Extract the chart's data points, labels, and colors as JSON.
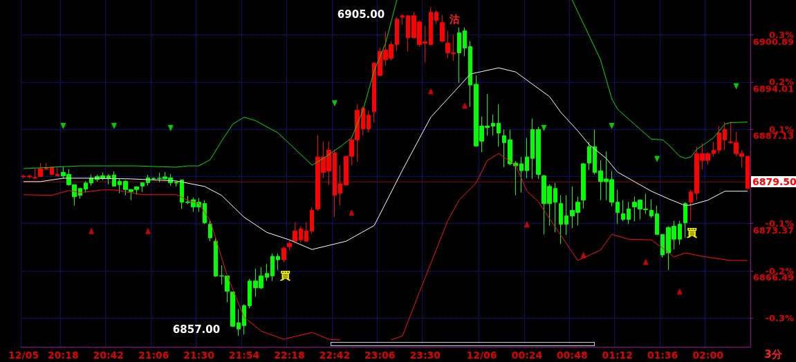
{
  "chart_data": {
    "type": "candlestick",
    "categories": [
      "12/05",
      null,
      null,
      null,
      null,
      null,
      null,
      "20:18",
      null,
      null,
      null,
      null,
      null,
      null,
      null,
      "20:42",
      null,
      null,
      null,
      null,
      null,
      null,
      null,
      "21:06",
      null,
      null,
      null,
      null,
      null,
      null,
      null,
      "21:30",
      null,
      null,
      null,
      null,
      null,
      null,
      null,
      "21:54",
      null,
      null,
      null,
      null,
      null,
      null,
      null,
      "22:18",
      null,
      null,
      null,
      null,
      null,
      null,
      null,
      "22:42",
      null,
      null,
      null,
      null,
      null,
      null,
      null,
      "23:06",
      null,
      null,
      null,
      null,
      null,
      null,
      null,
      "23:30",
      null,
      null,
      null,
      null,
      null,
      null,
      null,
      null,
      null,
      "12/06",
      null,
      null,
      null,
      null,
      null,
      null,
      null,
      "00:24",
      null,
      null,
      null,
      null,
      null,
      null,
      null,
      "00:48",
      null,
      null,
      null,
      null,
      null,
      null,
      null,
      "01:12",
      null,
      null,
      null,
      null,
      null,
      null,
      null,
      "01:36",
      null,
      null,
      null,
      null,
      null,
      null,
      null,
      "02:00",
      null,
      null,
      null,
      null,
      null,
      null,
      null
    ],
    "ohlc": [
      [
        6880.2,
        6880.5,
        6880.0,
        6880.3
      ],
      [
        6880.2,
        6880.5,
        6880.0,
        6880.3
      ],
      [
        6880.0,
        6881.4,
        6879.9,
        6880.1
      ],
      [
        6880.25,
        6882.2,
        6880.25,
        6881.4
      ],
      [
        6881.3,
        6882.2,
        6881.3,
        6881.5
      ],
      [
        6880.55,
        6881.6,
        6880.5,
        6881.6
      ],
      [
        6880.35,
        6881.6,
        6880.3,
        6880.55
      ],
      [
        6880.85,
        6881.6,
        6879.9,
        6880.35
      ],
      [
        6880.55,
        6881.3,
        6878.9,
        6879.05
      ],
      [
        6879.05,
        6879.1,
        6876.0,
        6877.3
      ],
      [
        6878.5,
        6878.6,
        6877.0,
        6877.5
      ],
      [
        6879.3,
        6879.6,
        6877.9,
        6878.4
      ],
      [
        6880.0,
        6880.55,
        6878.9,
        6879.3
      ],
      [
        6880.25,
        6880.5,
        6879.5,
        6879.8
      ],
      [
        6880.35,
        6880.85,
        6879.7,
        6879.95
      ],
      [
        6880.35,
        6880.6,
        6879.1,
        6879.95
      ],
      [
        6880.45,
        6881.0,
        6878.85,
        6878.85
      ],
      [
        6879.55,
        6880.0,
        6877.8,
        6879.05
      ],
      [
        6879.55,
        6879.7,
        6877.5,
        6878.35
      ],
      [
        6878.35,
        6878.4,
        6876.8,
        6878.05
      ],
      [
        6878.75,
        6878.75,
        6877.6,
        6878.35
      ],
      [
        6879.35,
        6879.35,
        6878.0,
        6878.85
      ],
      [
        6880.05,
        6880.5,
        6878.9,
        6879.35
      ],
      [
        6880.0,
        6880.0,
        6879.7,
        6879.9
      ],
      [
        6880.0,
        6880.8,
        6879.4,
        6879.95
      ],
      [
        6880.2,
        6880.9,
        6879.8,
        6879.9
      ],
      [
        6880.05,
        6880.6,
        6878.9,
        6879.35
      ],
      [
        6879.4,
        6879.6,
        6878.8,
        6879.3
      ],
      [
        6879.75,
        6879.75,
        6875.5,
        6876.5
      ],
      [
        6876.55,
        6877.4,
        6876.2,
        6876.45
      ],
      [
        6876.85,
        6877.2,
        6875.1,
        6875.8
      ],
      [
        6876.5,
        6877.1,
        6875.1,
        6875.8
      ],
      [
        6876.3,
        6876.8,
        6873.3,
        6873.5
      ],
      [
        6873.3,
        6873.8,
        6870.8,
        6871.3
      ],
      [
        6870.8,
        6871.3,
        6865.6,
        6865.7
      ],
      [
        6865.75,
        6867.3,
        6864.5,
        6865.7
      ],
      [
        6865.75,
        6865.75,
        6861.9,
        6863.5
      ],
      [
        6863.4,
        6863.4,
        6858.3,
        6858.4
      ],
      [
        6858.9,
        6860.9,
        6857.0,
        6858.0
      ],
      [
        6861.4,
        6861.6,
        6857.2,
        6858.5
      ],
      [
        6865.0,
        6865.3,
        6861.0,
        6861.4
      ],
      [
        6865.0,
        6866.8,
        6862.7,
        6864.0
      ],
      [
        6865.75,
        6867.0,
        6863.8,
        6864.0
      ],
      [
        6866.1,
        6867.5,
        6865.0,
        6865.55
      ],
      [
        6868.6,
        6869.0,
        6865.0,
        6865.75
      ],
      [
        6868.6,
        6869.0,
        6866.6,
        6868.1
      ],
      [
        6868.1,
        6870.0,
        6867.7,
        6869.8
      ],
      [
        6870.0,
        6871.0,
        6869.5,
        6870.5
      ],
      [
        6870.8,
        6873.6,
        6870.8,
        6872.3
      ],
      [
        6871.0,
        6873.0,
        6870.6,
        6872.6
      ],
      [
        6870.8,
        6873.6,
        6870.8,
        6872.3
      ],
      [
        6872.3,
        6875.8,
        6871.9,
        6875.3
      ],
      [
        6875.5,
        6886.3,
        6875.2,
        6883.1
      ],
      [
        6880.85,
        6885.3,
        6880.0,
        6883.1
      ],
      [
        6881.05,
        6885.3,
        6879.0,
        6884.1
      ],
      [
        6877.5,
        6884.2,
        6874.3,
        6883.7
      ],
      [
        6877.8,
        6881.9,
        6876.0,
        6879.2
      ],
      [
        6879.0,
        6883.2,
        6879.0,
        6883.2
      ],
      [
        6883.2,
        6886.0,
        6881.9,
        6885.6
      ],
      [
        6885.6,
        6890.8,
        6882.4,
        6889.9
      ],
      [
        6887.2,
        6890.5,
        6886.2,
        6890.2
      ],
      [
        6887.2,
        6889.9,
        6886.7,
        6889.2
      ],
      [
        6889.7,
        6896.9,
        6888.1,
        6896.8
      ],
      [
        6895.0,
        6899.0,
        6894.9,
        6898.5
      ],
      [
        6897.3,
        6901.4,
        6896.4,
        6898.7
      ],
      [
        6897.5,
        6900.0,
        6897.2,
        6899.5
      ],
      [
        6899.5,
        6903.5,
        6898.5,
        6903.2
      ],
      [
        6903.5,
        6903.9,
        6902.4,
        6903.7
      ],
      [
        6900.5,
        6903.7,
        6898.5,
        6903.7
      ],
      [
        6900.5,
        6904.2,
        6900.5,
        6903.7
      ],
      [
        6899.5,
        6903.0,
        6899.2,
        6902.8
      ],
      [
        6899.7,
        6902.3,
        6896.9,
        6899.9
      ],
      [
        6899.5,
        6905.0,
        6899.5,
        6904.2
      ],
      [
        6903.0,
        6904.5,
        6902.5,
        6904.2
      ],
      [
        6900.0,
        6903.8,
        6899.8,
        6902.7
      ],
      [
        6898.3,
        6901.5,
        6897.5,
        6899.7
      ],
      [
        6898.2,
        6900.9,
        6897.1,
        6898.3
      ],
      [
        6901.2,
        6902.0,
        6893.9,
        6898.3
      ],
      [
        6901.5,
        6902.0,
        6897.8,
        6899.0
      ],
      [
        6899.2,
        6900.0,
        6890.4,
        6893.6
      ],
      [
        6893.7,
        6895.0,
        6884.6,
        6884.7
      ],
      [
        6887.6,
        6889.0,
        6883.8,
        6885.4
      ],
      [
        6887.6,
        6892.3,
        6886.2,
        6887.4
      ],
      [
        6888.0,
        6889.3,
        6886.2,
        6887.6
      ],
      [
        6888.0,
        6890.8,
        6884.6,
        6886.6
      ],
      [
        6886.2,
        6887.1,
        6881.6,
        6885.2
      ],
      [
        6885.6,
        6887.1,
        6881.9,
        6882.1
      ],
      [
        6882.2,
        6882.5,
        6877.5,
        6881.8
      ],
      [
        6882.1,
        6883.1,
        6877.9,
        6881.1
      ],
      [
        6883.1,
        6885.9,
        6880.0,
        6881.1
      ],
      [
        6887.1,
        6888.7,
        6879.9,
        6882.9
      ],
      [
        6887.1,
        6887.5,
        6879.9,
        6880.55
      ],
      [
        6880.35,
        6880.5,
        6871.8,
        6876.3
      ],
      [
        6878.8,
        6879.1,
        6873.1,
        6876.3
      ],
      [
        6878.5,
        6879.3,
        6872.1,
        6876.5
      ],
      [
        6876.3,
        6877.5,
        6870.4,
        6873.3
      ],
      [
        6874.5,
        6877.5,
        6871.7,
        6873.3
      ],
      [
        6875.3,
        6878.8,
        6872.7,
        6874.5
      ],
      [
        6876.5,
        6877.3,
        6873.1,
        6875.0
      ],
      [
        6882.1,
        6882.2,
        6875.6,
        6876.8
      ],
      [
        6884.6,
        6885.3,
        6881.2,
        6882.2
      ],
      [
        6884.6,
        6887.1,
        6880.55,
        6880.85
      ],
      [
        6881.05,
        6882.6,
        6876.8,
        6879.5
      ],
      [
        6879.9,
        6883.9,
        6876.8,
        6879.5
      ],
      [
        6879.8,
        6881.05,
        6875.9,
        6876.5
      ],
      [
        6876.5,
        6878.3,
        6873.3,
        6875.0
      ],
      [
        6874.8,
        6876.8,
        6873.7,
        6874.0
      ],
      [
        6875.5,
        6876.5,
        6873.3,
        6874.0
      ],
      [
        6876.5,
        6877.3,
        6873.7,
        6875.8
      ],
      [
        6876.8,
        6876.9,
        6874.0,
        6875.5
      ],
      [
        6875.5,
        6877.7,
        6874.8,
        6875.4
      ],
      [
        6875.3,
        6876.9,
        6874.2,
        6874.5
      ],
      [
        6874.8,
        6876.0,
        6871.8,
        6871.8
      ],
      [
        6871.8,
        6871.8,
        6868.4,
        6868.8
      ],
      [
        6872.8,
        6873.0,
        6866.6,
        6869.1
      ],
      [
        6873.0,
        6873.8,
        6869.6,
        6871.1
      ],
      [
        6873.3,
        6873.8,
        6870.3,
        6871.1
      ],
      [
        6876.3,
        6876.5,
        6871.3,
        6873.5
      ],
      [
        6876.5,
        6878.3,
        6873.8,
        6878.0
      ],
      [
        6877.8,
        6884.6,
        6876.8,
        6883.6
      ],
      [
        6882.6,
        6885.1,
        6881.3,
        6883.6
      ],
      [
        6882.6,
        6883.8,
        6882.0,
        6883.6
      ],
      [
        6883.6,
        6885.3,
        6883.1,
        6884.1
      ],
      [
        6884.1,
        6887.6,
        6883.6,
        6886.6
      ],
      [
        6885.6,
        6888.2,
        6884.1,
        6887.1
      ],
      [
        6885.2,
        6888.3,
        6885.0,
        6885.3
      ],
      [
        6883.6,
        6886.8,
        6883.2,
        6885.2
      ],
      [
        6883.2,
        6884.1,
        6881.5,
        6883.6
      ],
      [
        6878.5,
        6883.2,
        6878.5,
        6883.2
      ]
    ],
    "colors": [
      "#ff0000",
      "#ff0000",
      "#ff0000",
      "#ff0000",
      "#ff0000",
      "#ff0000",
      "#ff0000",
      "#00ff00",
      "#00ff00",
      "#00ff00",
      "#00ff00",
      "#00ff00",
      "#00ff00",
      "#00ff00",
      "#00ff00",
      "#00ff00",
      "#00ff00",
      "#00ff00",
      "#00ff00",
      "#00ff00",
      "#00ff00",
      "#00ff00",
      "#00ff00",
      "#00ff00",
      "#00ff00",
      "#00ff00",
      "#00ff00",
      "#00ff00",
      "#00ff00",
      "#00ff00",
      "#00ff00",
      "#00ff00",
      "#00ff00",
      "#00ff00",
      "#00ff00",
      "#00ff00",
      "#00ff00",
      "#00ff00",
      "#00ff00",
      "#00ff00",
      "#00ff00",
      "#00ff00",
      "#00ff00",
      "#00ff00",
      "#00ff00",
      "#00ff00",
      "#ff0000",
      "#ff0000",
      "#ff0000",
      "#ff0000",
      "#ff0000",
      "#ff0000",
      "#ff0000",
      "#ff0000",
      "#ff0000",
      "#ff0000",
      "#ff0000",
      "#ff0000",
      "#ff0000",
      "#ff0000",
      "#ff0000",
      "#ff0000",
      "#ff0000",
      "#ff0000",
      "#ff0000",
      "#ff0000",
      "#ff0000",
      "#ff0000",
      "#ff0000",
      "#ff0000",
      "#ff0000",
      "#ff0000",
      "#ff0000",
      "#ff0000",
      "#ff0000",
      "#ff0000",
      "#ff0000",
      "#00ff00",
      "#00ff00",
      "#00ff00",
      "#00ff00",
      "#00ff00",
      "#00ff00",
      "#00ff00",
      "#00ff00",
      "#00ff00",
      "#00ff00",
      "#00ff00",
      "#00ff00",
      "#00ff00",
      "#00ff00",
      "#00ff00",
      "#00ff00",
      "#00ff00",
      "#00ff00",
      "#00ff00",
      "#00ff00",
      "#00ff00",
      "#00ff00",
      "#00ff00",
      "#00ff00",
      "#00ff00",
      "#00ff00",
      "#00ff00",
      "#00ff00",
      "#00ff00",
      "#00ff00",
      "#00ff00",
      "#00ff00",
      "#00ff00",
      "#00ff00",
      "#00ff00",
      "#00ff00",
      "#00ff00",
      "#00ff00",
      "#00ff00",
      "#00ff00",
      "#00ff00",
      "#ff0000",
      "#ff0000",
      "#ff0000",
      "#ff0000",
      "#ff0000",
      "#ff0000",
      "#ff0000",
      "#ff0000",
      "#ff0000",
      "#ff0000",
      "#ff0000"
    ],
    "series": [
      {
        "type": "line",
        "color": "#00e000",
        "values": [
          6881.4,
          null,
          null,
          null,
          null,
          null,
          null,
          null,
          null,
          null,
          6881.8,
          null,
          null,
          null,
          null,
          null,
          null,
          null,
          null,
          null,
          6881.8,
          null,
          null,
          null,
          null,
          null,
          null,
          6881.6,
          null,
          6881.8,
          null,
          6881.8,
          null,
          6882.7,
          null,
          6885.4,
          null,
          6887.9,
          null,
          6888.9,
          null,
          6888.4,
          null,
          null,
          null,
          6886.6,
          null,
          null,
          null,
          null,
          null,
          6881.9,
          null,
          6882.9,
          null,
          null,
          6884.6,
          null,
          6885.9,
          null,
          6889.9,
          null,
          6895.7,
          null,
          6899.7,
          null,
          6906.0,
          null,
          null,
          null,
          null,
          null,
          null,
          null,
          null,
          null,
          null,
          null,
          null,
          null,
          null,
          null,
          null,
          null,
          null,
          null,
          null,
          null,
          null,
          null,
          null,
          null,
          null,
          null,
          null,
          null,
          null,
          null,
          null,
          null,
          null,
          null,
          null,
          null,
          null,
          null,
          null,
          null,
          null,
          null,
          null,
          null,
          null,
          null,
          null,
          null,
          null,
          null,
          null,
          null,
          null,
          null,
          null,
          null,
          null,
          null,
          null,
          null,
          null
        ]
      },
      {
        "type": "line",
        "color": "#00e000",
        "values": [
          null,
          null,
          null,
          null,
          null,
          null,
          null,
          null,
          null,
          null,
          null,
          null,
          null,
          null,
          null,
          null,
          null,
          null,
          null,
          null,
          null,
          null,
          null,
          null,
          null,
          null,
          null,
          null,
          null,
          null,
          null,
          null,
          null,
          null,
          null,
          null,
          null,
          null,
          null,
          null,
          null,
          null,
          null,
          null,
          null,
          null,
          null,
          null,
          null,
          null,
          null,
          null,
          null,
          null,
          null,
          null,
          null,
          null,
          null,
          null,
          null,
          null,
          null,
          null,
          null,
          null,
          null,
          null,
          null,
          null,
          null,
          null,
          null,
          null,
          null,
          null,
          null,
          null,
          null,
          null,
          null,
          null,
          null,
          null,
          null,
          null,
          null,
          null,
          null,
          null,
          null,
          null,
          null,
          null,
          null,
          null,
          null,
          6906.0,
          null,
          null,
          null,
          null,
          6897.3,
          null,
          6891.6,
          6890.1,
          null,
          6888.6,
          null,
          null,
          null,
          6885.7,
          null,
          6885.6,
          6884.9,
          null,
          6883.2,
          6882.9,
          6883.1,
          6884.2,
          null,
          null,
          6885.9,
          null,
          6887.9,
          6888.1,
          null,
          null,
          6888.2
        ]
      },
      {
        "type": "line",
        "color": "#ffffff",
        "values": [
          6879.5,
          null,
          null,
          6879.5,
          null,
          null,
          null,
          6880.0,
          null,
          null,
          null,
          null,
          6880.0,
          null,
          null,
          null,
          null,
          null,
          null,
          6879.9,
          null,
          null,
          null,
          null,
          null,
          null,
          null,
          6879.6,
          null,
          null,
          null,
          null,
          6878.8,
          null,
          null,
          6877.5,
          null,
          null,
          null,
          6874.3,
          null,
          null,
          null,
          6872.1,
          null,
          null,
          null,
          6871.0,
          null,
          null,
          null,
          6869.6,
          null,
          null,
          null,
          null,
          null,
          6870.8,
          null,
          null,
          null,
          null,
          6873.1,
          null,
          null,
          null,
          null,
          6881.2,
          null,
          null,
          null,
          null,
          6888.9,
          null,
          null,
          null,
          null,
          null,
          null,
          6895.2,
          null,
          null,
          null,
          null,
          6896.1,
          null,
          null,
          6895.5,
          null,
          6894.3,
          null,
          null,
          null,
          6891.9,
          null,
          6889.6,
          null,
          null,
          6886.9,
          null,
          6884.9,
          null,
          null,
          6882.9,
          null,
          6880.9,
          null,
          null,
          6879.5,
          null,
          null,
          6878.1,
          null,
          null,
          6877.0,
          null,
          null,
          6876.0,
          6876.1,
          null,
          null,
          6876.8,
          null,
          null,
          6878.1,
          null,
          null,
          null,
          6878.1
        ]
      },
      {
        "type": "line",
        "color": "#ff1010",
        "values": [
          6877.6,
          null,
          null,
          null,
          null,
          6877.5,
          null,
          null,
          6878.2,
          null,
          6877.9,
          null,
          null,
          null,
          6878.3,
          null,
          6878.3,
          null,
          null,
          null,
          null,
          6877.6,
          null,
          null,
          null,
          null,
          null,
          6877.6,
          null,
          6876.8,
          null,
          6876.3,
          null,
          6873.8,
          null,
          null,
          6865.8,
          null,
          null,
          6859.7,
          null,
          null,
          6857.7,
          null,
          null,
          null,
          6856.5,
          null,
          null,
          null,
          null,
          6857.5,
          null,
          null,
          6856.5,
          null,
          6856.4,
          null,
          null,
          null,
          null,
          null,
          null,
          null,
          null,
          null,
          null,
          null,
          null,
          null,
          null,
          null,
          null,
          null,
          null,
          null,
          null,
          null,
          null,
          null,
          null,
          null,
          null,
          null,
          null,
          null,
          null,
          null,
          null,
          null,
          null,
          null,
          null,
          null,
          null,
          null,
          null,
          null,
          null,
          null,
          null,
          null,
          null,
          null,
          null,
          null,
          null,
          null,
          null,
          null,
          null,
          null,
          null,
          null,
          null,
          null,
          null,
          null,
          null,
          null,
          null,
          null,
          null,
          null,
          null,
          null,
          null,
          null,
          null
        ]
      },
      {
        "type": "line",
        "color": "#ff1010",
        "values": [
          null,
          null,
          null,
          null,
          null,
          null,
          null,
          null,
          null,
          null,
          null,
          null,
          null,
          null,
          null,
          null,
          null,
          null,
          null,
          null,
          null,
          null,
          null,
          null,
          null,
          null,
          null,
          null,
          null,
          null,
          null,
          null,
          null,
          null,
          null,
          null,
          null,
          null,
          null,
          null,
          null,
          null,
          null,
          null,
          null,
          null,
          null,
          null,
          null,
          null,
          null,
          null,
          null,
          null,
          null,
          null,
          null,
          null,
          null,
          null,
          null,
          null,
          null,
          null,
          null,
          6856.4,
          null,
          6857.0,
          null,
          null,
          6863.4,
          null,
          null,
          null,
          null,
          6873.8,
          null,
          6876.8,
          null,
          null,
          6879.3,
          null,
          6882.6,
          null,
          6883.6,
          null,
          null,
          6881.9,
          null,
          6878.1,
          null,
          6876.6,
          null,
          6874.1,
          null,
          null,
          null,
          null,
          6868.0,
          null,
          null,
          null,
          6869.5,
          null,
          6871.8,
          null,
          null,
          6871.1,
          null,
          null,
          null,
          6871.0,
          null,
          6869.8,
          null,
          6868.5,
          null,
          6869.1,
          null,
          null,
          6868.6,
          null,
          null,
          null,
          null,
          6868.0,
          null,
          null,
          6868.0
        ]
      },
      {
        "type": "scatter",
        "marker": "triangle",
        "color": "#00ff00",
        "values": [
          null,
          null,
          null,
          null,
          null,
          null,
          null,
          6887.6,
          null,
          null,
          null,
          null,
          null,
          null,
          null,
          null,
          6887.6,
          null,
          null,
          null,
          null,
          null,
          null,
          null,
          null,
          null,
          6887.3,
          null,
          null,
          null,
          null,
          null,
          null,
          null,
          null,
          null,
          null,
          null,
          null,
          null,
          null,
          null,
          null,
          null,
          null,
          null,
          null,
          null,
          null,
          null,
          null,
          null,
          null,
          null,
          null,
          6890.9,
          null,
          null,
          null,
          null,
          null,
          null,
          null,
          null,
          null,
          null,
          null,
          null,
          null,
          null,
          null,
          null,
          null,
          null,
          null,
          null,
          null,
          null,
          null,
          null,
          null,
          null,
          null,
          null,
          null,
          null,
          null,
          null,
          null,
          null,
          null,
          null,
          6887.3,
          null,
          null,
          null,
          null,
          null,
          null,
          null,
          null,
          null,
          null,
          null,
          6887.6,
          null,
          null,
          null,
          null,
          null,
          null,
          null,
          6882.8,
          null,
          null,
          null,
          null,
          null,
          null,
          null,
          null,
          null,
          null,
          null,
          null,
          null,
          6893.4,
          null,
          null
        ]
      },
      {
        "type": "scatter",
        "marker": "triangle",
        "color": "#ff0000",
        "values": [
          null,
          null,
          null,
          null,
          null,
          null,
          null,
          null,
          null,
          null,
          null,
          null,
          6872.3,
          null,
          null,
          null,
          null,
          null,
          null,
          null,
          null,
          null,
          6872.3,
          null,
          null,
          null,
          null,
          null,
          null,
          null,
          null,
          null,
          null,
          null,
          null,
          null,
          null,
          null,
          null,
          null,
          null,
          null,
          null,
          null,
          null,
          null,
          null,
          null,
          null,
          null,
          null,
          null,
          null,
          null,
          null,
          null,
          null,
          null,
          6875.0,
          null,
          null,
          null,
          null,
          null,
          null,
          null,
          null,
          null,
          null,
          null,
          null,
          null,
          6892.7,
          null,
          null,
          null,
          null,
          null,
          6890.6,
          null,
          null,
          null,
          null,
          null,
          null,
          null,
          null,
          null,
          null,
          6873.3,
          null,
          null,
          null,
          null,
          null,
          null,
          null,
          null,
          null,
          6868.8,
          null,
          null,
          null,
          null,
          null,
          null,
          null,
          null,
          null,
          null,
          6867.8,
          null,
          null,
          null,
          null,
          null,
          6863.5,
          null,
          null,
          null,
          null,
          null,
          null,
          null,
          null,
          null,
          null,
          null,
          null
        ]
      }
    ],
    "ylim": [
      6855.4,
      6906.0
    ],
    "yticks": [
      6900.89,
      6894.01,
      6887.13,
      6873.37,
      6866.49
    ],
    "y2lim": [
      -0.361,
      0.374
    ],
    "y2ticks": [
      {
        "value": 0.3,
        "label": "0.3%"
      },
      {
        "value": 0.2,
        "label": "0.2%"
      },
      {
        "value": 0.1,
        "label": "0.1%"
      },
      {
        "value": 0.0,
        "label": null
      },
      {
        "value": -0.1,
        "label": "-0.1%"
      },
      {
        "value": -0.2,
        "label": "-0.2%"
      },
      {
        "value": -0.3,
        "label": "-0.3%"
      }
    ],
    "grid": true,
    "ref_lines": [
      {
        "axis": "y",
        "value": 6879.5,
        "label": "6879.50",
        "color": "#ff0000"
      }
    ],
    "annotations": [
      "6905.00",
      "6857.00",
      "沽",
      "買",
      "買",
      "3分"
    ]
  }
}
